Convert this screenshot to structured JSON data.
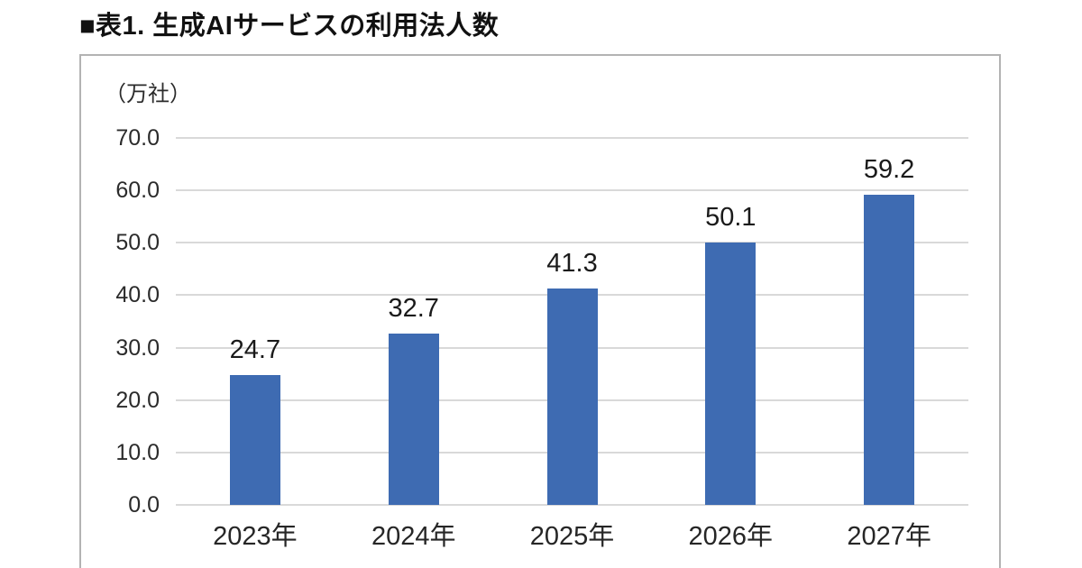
{
  "header": {
    "title": "■表1. 生成AIサービスの利用法人数"
  },
  "chart": {
    "unit_label": "（万社）"
  },
  "chart_data": {
    "type": "bar",
    "title": "表1. 生成AIサービスの利用法人数",
    "categories": [
      "2023年",
      "2024年",
      "2025年",
      "2026年",
      "2027年"
    ],
    "values": [
      24.7,
      32.7,
      41.3,
      50.1,
      59.2
    ],
    "data_labels": [
      "24.7",
      "32.7",
      "41.3",
      "50.1",
      "59.2"
    ],
    "xlabel": "",
    "ylabel": "（万社）",
    "ylim": [
      0,
      70
    ],
    "ytick_step": 10,
    "ytick_labels": [
      "0.0",
      "10.0",
      "20.0",
      "30.0",
      "40.0",
      "50.0",
      "60.0",
      "70.0"
    ],
    "grid": true,
    "legend": "none",
    "bar_color": "#3e6bb2",
    "gridline_color": "#d9d9d9",
    "border_color": "#b3b3b3",
    "label_color": "#1a1a1a"
  }
}
